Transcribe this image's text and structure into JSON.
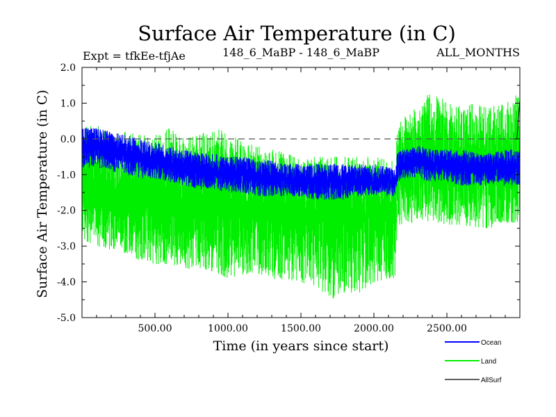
{
  "chart_data": {
    "type": "line",
    "title": "Surface Air Temperature (in C)",
    "subtitle_left": "Expt = tfkEe-tfjAe",
    "subtitle_center": "148_6_MaBP - 148_6_MaBP",
    "subtitle_right": "ALL_MONTHS",
    "xlabel": "Time (in years since start)",
    "ylabel": "Surface Air Temperature (in C)",
    "xlim": [
      0,
      3000
    ],
    "ylim": [
      -5.0,
      2.0
    ],
    "x_ticks": [
      500,
      1000,
      1500,
      2000,
      2500
    ],
    "x_tick_labels": [
      "500.00",
      "1000.00",
      "1500.00",
      "2000.00",
      "2500.00"
    ],
    "y_ticks": [
      2.0,
      1.0,
      0.0,
      -1.0,
      -2.0,
      -3.0,
      -4.0,
      -5.0
    ],
    "y_tick_labels": [
      "2.0",
      "1.0",
      "0.0",
      "-1.0",
      "-2.0",
      "-3.0",
      "-4.0",
      "-5.0"
    ],
    "reference_line": {
      "y": 0.0,
      "style": "dashed"
    },
    "grid": false,
    "legend_position": "bottom-right, outside plot",
    "series": [
      {
        "name": "Land",
        "color": "#00ee00",
        "x": [
          0,
          100,
          200,
          300,
          400,
          500,
          600,
          700,
          800,
          900,
          1000,
          1100,
          1200,
          1300,
          1400,
          1500,
          1600,
          1700,
          1800,
          1900,
          2000,
          2100,
          2150,
          2160,
          2200,
          2300,
          2400,
          2500,
          2600,
          2700,
          2800,
          2900,
          3000
        ],
        "mean": [
          -1.4,
          -1.5,
          -1.6,
          -1.6,
          -1.7,
          -1.7,
          -1.7,
          -1.8,
          -1.9,
          -1.9,
          -1.9,
          -2.0,
          -2.0,
          -2.0,
          -2.1,
          -2.1,
          -2.1,
          -2.1,
          -2.1,
          -2.1,
          -2.1,
          -2.1,
          -2.1,
          -0.9,
          -0.9,
          -0.8,
          -0.7,
          -0.8,
          -0.8,
          -0.8,
          -0.9,
          -0.9,
          -0.9
        ],
        "min": [
          -2.8,
          -3.0,
          -3.1,
          -3.2,
          -3.4,
          -3.5,
          -3.5,
          -3.6,
          -3.7,
          -3.7,
          -3.9,
          -3.8,
          -3.8,
          -3.9,
          -4.0,
          -4.0,
          -4.2,
          -4.5,
          -4.3,
          -4.3,
          -4.0,
          -3.9,
          -3.9,
          -2.5,
          -2.4,
          -2.3,
          -2.3,
          -2.4,
          -2.4,
          -2.5,
          -2.5,
          -2.4,
          -2.3
        ],
        "max": [
          0.3,
          0.4,
          0.1,
          0.2,
          0.1,
          0.1,
          0.3,
          0.0,
          0.1,
          0.3,
          0.2,
          -0.1,
          -0.2,
          -0.3,
          -0.4,
          -0.6,
          -0.5,
          -0.5,
          -0.5,
          -0.5,
          -0.5,
          -0.6,
          -0.6,
          0.3,
          0.6,
          0.9,
          1.4,
          1.0,
          0.9,
          1.0,
          0.9,
          1.0,
          1.3
        ]
      },
      {
        "name": "Ocean",
        "color": "#0000ff",
        "x": [
          0,
          100,
          200,
          300,
          400,
          500,
          600,
          700,
          800,
          900,
          1000,
          1100,
          1200,
          1300,
          1400,
          1500,
          1600,
          1700,
          1800,
          1900,
          2000,
          2100,
          2150,
          2160,
          2200,
          2300,
          2400,
          2500,
          2600,
          2700,
          2800,
          2900,
          3000
        ],
        "mean": [
          -0.3,
          -0.2,
          -0.3,
          -0.4,
          -0.5,
          -0.6,
          -0.7,
          -0.8,
          -0.9,
          -0.9,
          -1.0,
          -1.0,
          -1.1,
          -1.1,
          -1.1,
          -1.2,
          -1.2,
          -1.2,
          -1.2,
          -1.2,
          -1.2,
          -1.2,
          -1.2,
          -0.8,
          -0.7,
          -0.6,
          -0.7,
          -0.7,
          -0.8,
          -0.8,
          -0.8,
          -0.8,
          -0.8
        ],
        "min": [
          -0.8,
          -0.8,
          -0.9,
          -1.0,
          -1.1,
          -1.1,
          -1.2,
          -1.3,
          -1.4,
          -1.4,
          -1.5,
          -1.5,
          -1.6,
          -1.6,
          -1.6,
          -1.6,
          -1.7,
          -1.7,
          -1.7,
          -1.6,
          -1.6,
          -1.6,
          -1.6,
          -1.2,
          -1.1,
          -1.1,
          -1.2,
          -1.2,
          -1.3,
          -1.3,
          -1.3,
          -1.3,
          -1.3
        ],
        "max": [
          0.3,
          0.3,
          0.2,
          0.1,
          0.0,
          -0.1,
          -0.2,
          -0.3,
          -0.4,
          -0.4,
          -0.5,
          -0.5,
          -0.6,
          -0.6,
          -0.7,
          -0.7,
          -0.7,
          -0.7,
          -0.7,
          -0.7,
          -0.7,
          -0.8,
          -0.8,
          -0.4,
          -0.3,
          -0.2,
          -0.3,
          -0.3,
          -0.3,
          -0.4,
          -0.4,
          -0.3,
          -0.3
        ]
      },
      {
        "name": "AllSurf",
        "color": "#000000",
        "x": [
          2980,
          3000
        ],
        "values": [
          0.0,
          1.1
        ]
      }
    ],
    "legend": [
      {
        "label": "Ocean",
        "color": "#0000ff"
      },
      {
        "label": "Land",
        "color": "#00ee00"
      },
      {
        "label": "AllSurf",
        "color": "#000000"
      }
    ]
  }
}
